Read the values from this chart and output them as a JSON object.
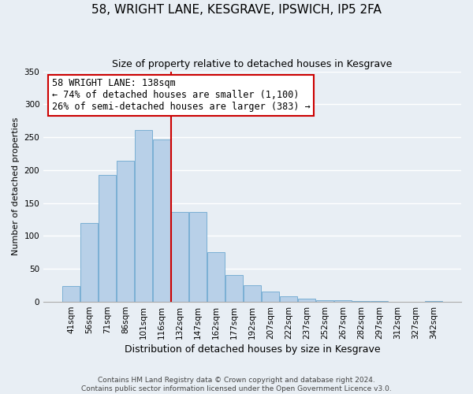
{
  "title": "58, WRIGHT LANE, KESGRAVE, IPSWICH, IP5 2FA",
  "subtitle": "Size of property relative to detached houses in Kesgrave",
  "xlabel": "Distribution of detached houses by size in Kesgrave",
  "ylabel": "Number of detached properties",
  "bar_labels": [
    "41sqm",
    "56sqm",
    "71sqm",
    "86sqm",
    "101sqm",
    "116sqm",
    "132sqm",
    "147sqm",
    "162sqm",
    "177sqm",
    "192sqm",
    "207sqm",
    "222sqm",
    "237sqm",
    "252sqm",
    "267sqm",
    "282sqm",
    "297sqm",
    "312sqm",
    "327sqm",
    "342sqm"
  ],
  "bar_values": [
    24,
    120,
    193,
    214,
    261,
    247,
    137,
    136,
    75,
    41,
    25,
    16,
    8,
    5,
    2,
    2,
    1,
    1,
    0,
    0,
    1
  ],
  "bar_color": "#b8d0e8",
  "bar_edge_color": "#7aafd4",
  "vline_color": "#cc0000",
  "annotation_title": "58 WRIGHT LANE: 138sqm",
  "annotation_line1": "← 74% of detached houses are smaller (1,100)",
  "annotation_line2": "26% of semi-detached houses are larger (383) →",
  "annotation_box_color": "#ffffff",
  "annotation_box_edge": "#cc0000",
  "ylim": [
    0,
    350
  ],
  "yticks": [
    0,
    50,
    100,
    150,
    200,
    250,
    300,
    350
  ],
  "footer1": "Contains HM Land Registry data © Crown copyright and database right 2024.",
  "footer2": "Contains public sector information licensed under the Open Government Licence v3.0.",
  "background_color": "#e8eef4",
  "title_fontsize": 11,
  "subtitle_fontsize": 9,
  "xlabel_fontsize": 9,
  "ylabel_fontsize": 8,
  "tick_fontsize": 7.5,
  "footer_fontsize": 6.5,
  "annotation_fontsize": 8.5
}
